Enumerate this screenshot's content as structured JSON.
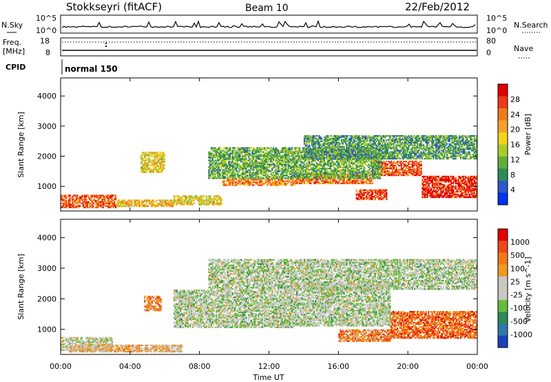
{
  "header": {
    "station": "Stokkseyri (fitACF)",
    "beam": "Beam 10",
    "date": "22/Feb/2012"
  },
  "panels": {
    "nsky_label": "N.Sky",
    "nsky_ticks": [
      "10^5",
      "10^0"
    ],
    "nsearch_label": "N.Search",
    "nsearch_ticks": [
      "10^5",
      "10^0"
    ],
    "freq_label": "Freq.",
    "freq_unit": "[MHz]",
    "freq_ticks": [
      "18",
      "8"
    ],
    "nave_label": "Nave",
    "nave_ticks": [
      "80",
      "0"
    ],
    "cpid_label": "CPID",
    "cpid_value": "normal 150"
  },
  "colors": {
    "power": [
      "#0033ee",
      "#2f57c8",
      "#2e8b57",
      "#5fae3c",
      "#a8cd2a",
      "#f4d21c",
      "#f3a32a",
      "#f07b1a",
      "#ee3a1a",
      "#e20000"
    ],
    "velocity": [
      "#1c40b8",
      "#2f78a8",
      "#2e8b57",
      "#66bb3a",
      "#c8c8c0",
      "#c8c8c0",
      "#ee9a20",
      "#f07b1a",
      "#ee4a1a",
      "#e20000"
    ]
  },
  "chart_data": [
    {
      "type": "heatmap",
      "name": "power",
      "ylabel": "Slant Range [km]",
      "yticks": [
        "1000",
        "2000",
        "3000",
        "4000"
      ],
      "ylim": [
        180,
        4600
      ],
      "colorbar_label": "Power [dB]",
      "colorbar_ticks": [
        "4",
        "8",
        "12",
        "16",
        "20",
        "24",
        "28"
      ],
      "clim": [
        0,
        32
      ],
      "bands": [
        {
          "t0": 0.0,
          "t1": 3.2,
          "r0": 280,
          "r1": 720,
          "level": 0.78
        },
        {
          "t0": 3.2,
          "t1": 6.5,
          "r0": 320,
          "r1": 560,
          "level": 0.62
        },
        {
          "t0": 6.5,
          "t1": 9.3,
          "r0": 380,
          "r1": 700,
          "level": 0.55
        },
        {
          "t0": 9.3,
          "t1": 13.5,
          "r0": 1020,
          "r1": 1250,
          "level": 0.72
        },
        {
          "t0": 13.5,
          "t1": 18.0,
          "r0": 1080,
          "r1": 1420,
          "level": 0.76
        },
        {
          "t0": 18.0,
          "t1": 20.8,
          "r0": 1350,
          "r1": 1850,
          "level": 0.82
        },
        {
          "t0": 20.8,
          "t1": 24.0,
          "r0": 620,
          "r1": 1350,
          "level": 0.9
        },
        {
          "t0": 4.6,
          "t1": 6.0,
          "r0": 1450,
          "r1": 2150,
          "level": 0.55
        },
        {
          "t0": 8.5,
          "t1": 18.5,
          "r0": 1250,
          "r1": 2300,
          "level": 0.35
        },
        {
          "t0": 14.0,
          "t1": 24.0,
          "r0": 1900,
          "r1": 2700,
          "level": 0.3
        },
        {
          "t0": 17.0,
          "t1": 18.8,
          "r0": 550,
          "r1": 900,
          "level": 0.85
        }
      ]
    },
    {
      "type": "heatmap",
      "name": "velocity",
      "ylabel": "Slant Range [km]",
      "yticks": [
        "1000",
        "2000",
        "3000",
        "4000"
      ],
      "ylim": [
        180,
        4600
      ],
      "xlabel": "Time UT",
      "xticks": [
        "00:00",
        "04:00",
        "08:00",
        "12:00",
        "16:00",
        "20:00",
        "00:00"
      ],
      "xlim": [
        0,
        24
      ],
      "colorbar_label": "Velocity [m s^-1]",
      "colorbar_ticks": [
        "1000",
        "500",
        "100",
        "25",
        "-25",
        "-100",
        "-500",
        "-1000"
      ],
      "bands": [
        {
          "t0": 0.0,
          "t1": 3.0,
          "r0": 300,
          "r1": 750,
          "level": 0.48
        },
        {
          "t0": 0.5,
          "t1": 7.0,
          "r0": 250,
          "r1": 500,
          "level": 0.62
        },
        {
          "t0": 6.5,
          "t1": 13.5,
          "r0": 1050,
          "r1": 2300,
          "level": 0.45
        },
        {
          "t0": 13.5,
          "t1": 19.0,
          "r0": 1100,
          "r1": 2500,
          "level": 0.45
        },
        {
          "t0": 19.0,
          "t1": 24.0,
          "r0": 700,
          "r1": 1600,
          "level": 0.78
        },
        {
          "t0": 16.0,
          "t1": 19.0,
          "r0": 600,
          "r1": 1000,
          "level": 0.74
        },
        {
          "t0": 4.8,
          "t1": 5.8,
          "r0": 1600,
          "r1": 2100,
          "level": 0.72
        },
        {
          "t0": 8.5,
          "t1": 24.0,
          "r0": 2300,
          "r1": 3300,
          "level": 0.45
        }
      ]
    }
  ]
}
